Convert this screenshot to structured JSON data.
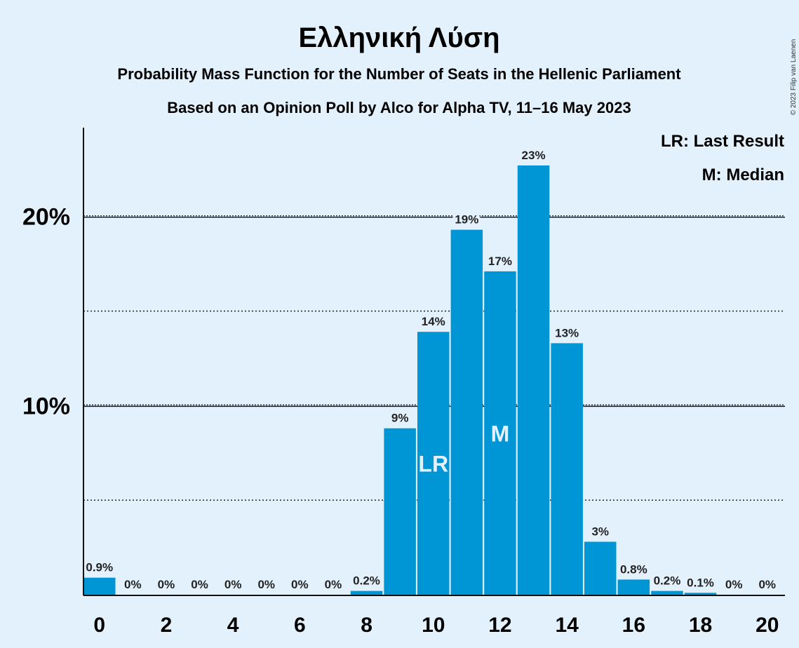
{
  "title": "Ελληνική Λύση",
  "subtitle_1": "Probability Mass Function for the Number of Seats in the Hellenic Parliament",
  "subtitle_2": "Based on an Opinion Poll by Alco for Alpha TV, 11–16 May 2023",
  "copyright": "© 2023 Filip van Laenen",
  "legend": {
    "last_result": "LR: Last Result",
    "median": "M: Median"
  },
  "colors": {
    "bar": "#0096d6",
    "background": "#e3f1fd"
  },
  "chart_data": {
    "type": "bar",
    "x": [
      0,
      1,
      2,
      3,
      4,
      5,
      6,
      7,
      8,
      9,
      10,
      11,
      12,
      13,
      14,
      15,
      16,
      17,
      18,
      19,
      20
    ],
    "values": [
      0.9,
      0,
      0,
      0,
      0,
      0,
      0,
      0,
      0.2,
      8.8,
      13.9,
      19.3,
      17.1,
      22.7,
      13.3,
      2.8,
      0.8,
      0.2,
      0.1,
      0,
      0
    ],
    "labels": [
      "0.9%",
      "0%",
      "0%",
      "0%",
      "0%",
      "0%",
      "0%",
      "0%",
      "0.2%",
      "9%",
      "14%",
      "19%",
      "17%",
      "23%",
      "13%",
      "3%",
      "0.8%",
      "0.2%",
      "0.1%",
      "0%",
      "0%"
    ],
    "xticks": [
      0,
      2,
      4,
      6,
      8,
      10,
      12,
      14,
      16,
      18,
      20
    ],
    "yticks": [
      {
        "value": 10,
        "label": "10%"
      },
      {
        "value": 20,
        "label": "20%"
      }
    ],
    "minor_gridlines": [
      5,
      15
    ],
    "ylim": [
      0,
      24.7
    ],
    "markers": [
      {
        "x": 10,
        "text": "LR"
      },
      {
        "x": 12,
        "text": "M"
      }
    ],
    "legend_placement": "top-right"
  }
}
